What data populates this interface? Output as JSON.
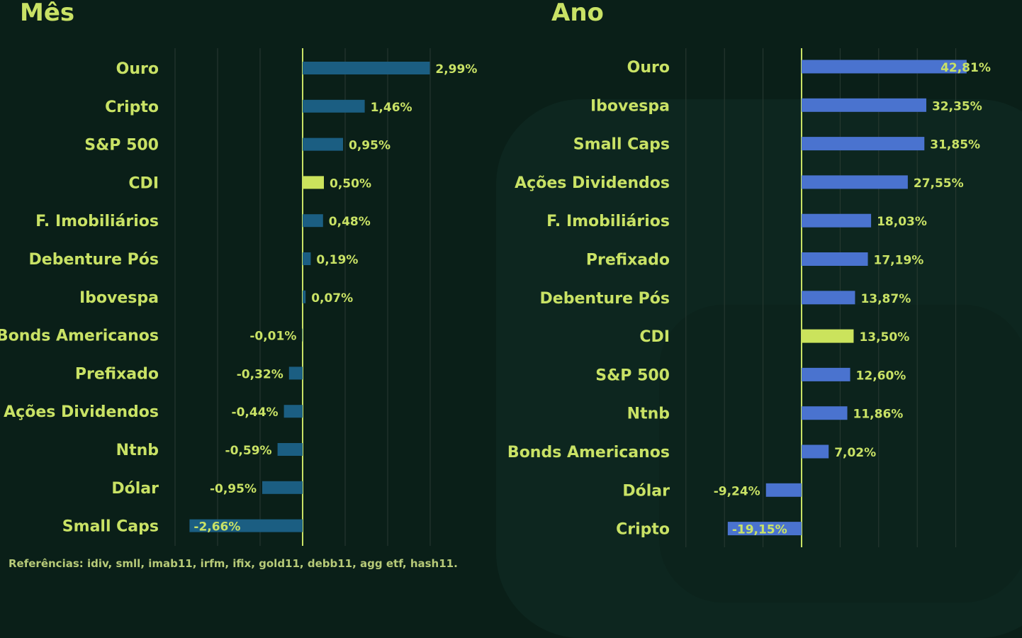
{
  "colors": {
    "background": "#0a1f18",
    "accent": "#c9e265",
    "month_bar": "#1b5e82",
    "year_bar": "#4a73cf",
    "highlight_bar": "#cbe35c",
    "grid": "#2a3a33"
  },
  "footer": {
    "text": "Referências: idiv, smll, imab11, irfm, ifix, gold11, debb11, agg etf, hash11."
  },
  "chart_data": [
    {
      "type": "bar",
      "orientation": "horizontal",
      "title": "Mês",
      "categories": [
        "Ouro",
        "Cripto",
        "S&P 500",
        "CDI",
        "F. Imobiliários",
        "Debenture Pós",
        "Ibovespa",
        "Bonds Americanos",
        "Prefixado",
        "Ações Dividendos",
        "Ntnb",
        "Dólar",
        "Small Caps"
      ],
      "values": [
        2.99,
        1.46,
        0.95,
        0.5,
        0.48,
        0.19,
        0.07,
        -0.01,
        -0.32,
        -0.44,
        -0.59,
        -0.95,
        -2.66
      ],
      "labels": [
        "2,99%",
        "1,46%",
        "0,95%",
        "0,50%",
        "0,48%",
        "0,19%",
        "0,07%",
        "-0,01%",
        "-0,32%",
        "-0,44%",
        "-0,59%",
        "-0,95%",
        "-2,66%"
      ],
      "highlight": "CDI",
      "xlim": [
        -3,
        3.5
      ],
      "grid": true,
      "xlabel": "",
      "ylabel": ""
    },
    {
      "type": "bar",
      "orientation": "horizontal",
      "title": "Ano",
      "categories": [
        "Ouro",
        "Ibovespa",
        "Small Caps",
        "Ações Dividendos",
        "F. Imobiliários",
        "Prefixado",
        "Debenture Pós",
        "CDI",
        "S&P 500",
        "Ntnb",
        "Bonds Americanos",
        "Dólar",
        "Cripto"
      ],
      "values": [
        42.81,
        32.35,
        31.85,
        27.55,
        18.03,
        17.19,
        13.87,
        13.5,
        12.6,
        11.86,
        7.02,
        -9.24,
        -19.15
      ],
      "labels": [
        "42,81%",
        "32,35%",
        "31,85%",
        "27,55%",
        "18,03%",
        "17,19%",
        "13,87%",
        "13,50%",
        "12,60%",
        "11,86%",
        "7,02%",
        "-9,24%",
        "-19,15%"
      ],
      "highlight": "CDI",
      "xlim": [
        -30,
        50
      ],
      "grid": true,
      "xlabel": "",
      "ylabel": ""
    }
  ]
}
